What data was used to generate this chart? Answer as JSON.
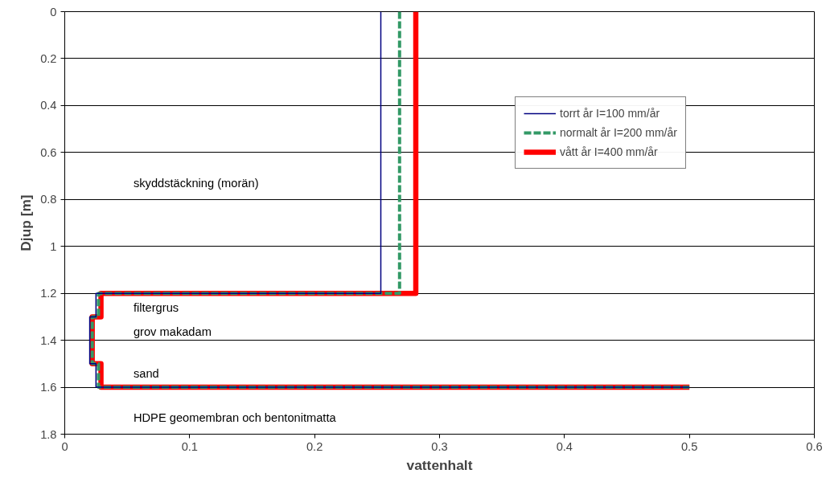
{
  "chart_data": {
    "type": "line",
    "xlabel": "vattenhalt",
    "ylabel": "Djup [m]",
    "xlim": [
      0,
      0.6
    ],
    "xticks": [
      0,
      0.1,
      0.2,
      0.3,
      0.4,
      0.5,
      0.6
    ],
    "ylim": [
      1.8,
      0
    ],
    "yticks": [
      0,
      0.2,
      0.4,
      0.6,
      0.8,
      1,
      1.2,
      1.4,
      1.6,
      1.8
    ],
    "grid": "y",
    "legend": "right",
    "marker": "none",
    "series": [
      {
        "name": "torrt år I=100 mm/år",
        "color": "#000080",
        "line_style": "solid",
        "x": [
          0.253,
          0.253,
          0.025,
          0.025,
          0.02,
          0.02,
          0.025,
          0.025,
          0.5
        ],
        "values": [
          0,
          1.2,
          1.2,
          1.3,
          1.3,
          1.5,
          1.5,
          1.6,
          1.6
        ]
      },
      {
        "name": "normalt år I=200 mm/år",
        "color": "#339966",
        "line_style": "dashed",
        "x": [
          0.268,
          0.268,
          0.027,
          0.027,
          0.022,
          0.022,
          0.027,
          0.027,
          0.5
        ],
        "values": [
          0,
          1.2,
          1.2,
          1.3,
          1.3,
          1.5,
          1.5,
          1.6,
          1.6
        ]
      },
      {
        "name": "vått år I=400 mm/år",
        "color": "#ff0000",
        "line_style": "solid",
        "x": [
          0.281,
          0.281,
          0.029,
          0.029,
          0.022,
          0.022,
          0.029,
          0.029,
          0.5
        ],
        "values": [
          0,
          1.2,
          1.2,
          1.3,
          1.3,
          1.5,
          1.5,
          1.6,
          1.6
        ]
      }
    ],
    "annotations": [
      "skyddstäckning (morän)",
      "filtergrus",
      "grov makadam",
      "sand",
      "HDPE geomembran och bentonitmatta"
    ]
  }
}
